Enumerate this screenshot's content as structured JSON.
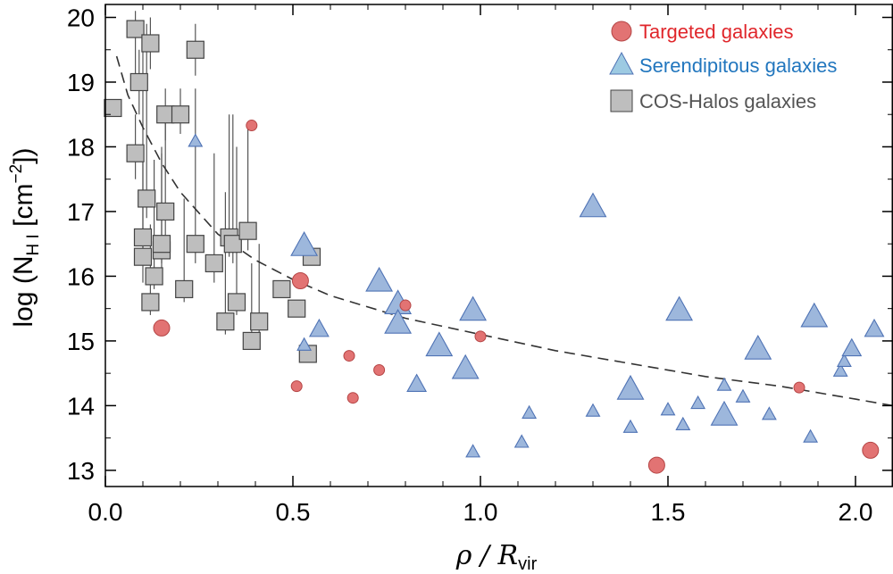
{
  "chart_data": {
    "type": "scatter",
    "title": "",
    "xlabel": {
      "main": "ρ / R",
      "sub": "vir"
    },
    "ylabel": {
      "main": "log (N",
      "sub": "H I",
      "mid": " [cm",
      "sup": "−2",
      "end": "])"
    },
    "xlim": [
      0.0,
      2.1
    ],
    "ylim": [
      12.75,
      20.2
    ],
    "xticks": [
      0.0,
      0.5,
      1.0,
      1.5,
      2.0
    ],
    "xtick_labels": [
      "0.0",
      "0.5",
      "1.0",
      "1.5",
      "2.0"
    ],
    "yticks": [
      13,
      14,
      15,
      16,
      17,
      18,
      19,
      20
    ],
    "ytick_labels": [
      "13",
      "14",
      "15",
      "16",
      "17",
      "18",
      "19",
      "20"
    ],
    "grid": false,
    "legend_position": "top-right",
    "legend": [
      {
        "label": "Targeted galaxies",
        "marker": "circle",
        "color": "#E0262B"
      },
      {
        "label": "Serendipitous galaxies",
        "marker": "triangle",
        "color": "#2176BE"
      },
      {
        "label": "COS-Halos galaxies",
        "marker": "square",
        "color": "#555555"
      }
    ],
    "colors": {
      "targeted_fill": "#E27373",
      "targeted_edge": "#B54545",
      "serendipitous_fill": "#9DB7DC",
      "serendipitous_edge": "#4F73B5",
      "coshalos_fill": "#BEBEBE",
      "coshalos_edge": "#444444",
      "fit_line": "#333333"
    },
    "fit_curve": {
      "style": "dashed",
      "points": [
        [
          0.03,
          19.4
        ],
        [
          0.06,
          18.8
        ],
        [
          0.1,
          18.3
        ],
        [
          0.15,
          17.75
        ],
        [
          0.2,
          17.3
        ],
        [
          0.3,
          16.65
        ],
        [
          0.4,
          16.25
        ],
        [
          0.5,
          15.95
        ],
        [
          0.6,
          15.7
        ],
        [
          0.8,
          15.35
        ],
        [
          1.0,
          15.1
        ],
        [
          1.2,
          14.85
        ],
        [
          1.4,
          14.65
        ],
        [
          1.6,
          14.45
        ],
        [
          1.8,
          14.3
        ],
        [
          2.0,
          14.1
        ],
        [
          2.1,
          14.0
        ]
      ]
    },
    "series": [
      {
        "name": "Targeted galaxies",
        "marker": "circle",
        "points": [
          {
            "x": 0.15,
            "y": 15.2,
            "size": "large"
          },
          {
            "x": 0.39,
            "y": 18.33,
            "size": "small"
          },
          {
            "x": 0.51,
            "y": 14.3,
            "size": "small"
          },
          {
            "x": 0.52,
            "y": 15.93,
            "size": "large"
          },
          {
            "x": 0.65,
            "y": 14.77,
            "size": "small"
          },
          {
            "x": 0.66,
            "y": 14.12,
            "size": "small"
          },
          {
            "x": 0.73,
            "y": 14.55,
            "size": "small"
          },
          {
            "x": 0.8,
            "y": 15.55,
            "size": "small"
          },
          {
            "x": 1.0,
            "y": 15.07,
            "size": "small"
          },
          {
            "x": 1.47,
            "y": 13.08,
            "size": "large"
          },
          {
            "x": 1.85,
            "y": 14.28,
            "size": "small"
          },
          {
            "x": 2.04,
            "y": 13.31,
            "size": "large"
          }
        ]
      },
      {
        "name": "Serendipitous galaxies",
        "marker": "triangle",
        "points": [
          {
            "x": 0.24,
            "y": 18.1,
            "size": "small"
          },
          {
            "x": 0.53,
            "y": 14.95,
            "size": "small"
          },
          {
            "x": 0.53,
            "y": 16.5,
            "size": "large"
          },
          {
            "x": 0.57,
            "y": 15.2,
            "size": "medium"
          },
          {
            "x": 0.73,
            "y": 15.95,
            "size": "large"
          },
          {
            "x": 0.78,
            "y": 15.6,
            "size": "large"
          },
          {
            "x": 0.78,
            "y": 15.3,
            "size": "large"
          },
          {
            "x": 0.83,
            "y": 14.35,
            "size": "medium"
          },
          {
            "x": 0.89,
            "y": 14.95,
            "size": "large"
          },
          {
            "x": 0.96,
            "y": 14.6,
            "size": "large"
          },
          {
            "x": 0.98,
            "y": 15.5,
            "size": "large"
          },
          {
            "x": 0.98,
            "y": 13.3,
            "size": "small"
          },
          {
            "x": 1.11,
            "y": 13.45,
            "size": "small"
          },
          {
            "x": 1.13,
            "y": 13.9,
            "size": "small"
          },
          {
            "x": 1.3,
            "y": 17.1,
            "size": "large"
          },
          {
            "x": 1.3,
            "y": 13.93,
            "size": "small"
          },
          {
            "x": 1.4,
            "y": 14.28,
            "size": "large"
          },
          {
            "x": 1.4,
            "y": 13.68,
            "size": "small"
          },
          {
            "x": 1.5,
            "y": 13.95,
            "size": "small"
          },
          {
            "x": 1.53,
            "y": 15.5,
            "size": "large"
          },
          {
            "x": 1.54,
            "y": 13.72,
            "size": "small"
          },
          {
            "x": 1.58,
            "y": 14.05,
            "size": "small"
          },
          {
            "x": 1.65,
            "y": 13.88,
            "size": "large"
          },
          {
            "x": 1.65,
            "y": 14.33,
            "size": "small"
          },
          {
            "x": 1.7,
            "y": 14.15,
            "size": "small"
          },
          {
            "x": 1.74,
            "y": 14.9,
            "size": "large"
          },
          {
            "x": 1.77,
            "y": 13.88,
            "size": "small"
          },
          {
            "x": 1.88,
            "y": 13.53,
            "size": "small"
          },
          {
            "x": 1.89,
            "y": 15.4,
            "size": "large"
          },
          {
            "x": 1.96,
            "y": 14.55,
            "size": "small"
          },
          {
            "x": 1.97,
            "y": 14.7,
            "size": "small"
          },
          {
            "x": 1.99,
            "y": 14.9,
            "size": "medium"
          },
          {
            "x": 2.05,
            "y": 15.2,
            "size": "medium"
          }
        ]
      },
      {
        "name": "COS-Halos galaxies",
        "marker": "square",
        "points": [
          {
            "x": 0.02,
            "y": 18.6
          },
          {
            "x": 0.08,
            "y": 19.82,
            "err": [
              19.0,
              20.1
            ]
          },
          {
            "x": 0.08,
            "y": 17.9,
            "err": [
              17.5,
              18.5
            ]
          },
          {
            "x": 0.09,
            "y": 19.0,
            "err": [
              18.5,
              19.5
            ]
          },
          {
            "x": 0.1,
            "y": 16.3,
            "err": [
              15.9,
              17.8
            ]
          },
          {
            "x": 0.1,
            "y": 16.6,
            "err": [
              16.3,
              19.5
            ]
          },
          {
            "x": 0.11,
            "y": 17.2,
            "err": [
              16.9,
              19.9
            ]
          },
          {
            "x": 0.12,
            "y": 19.6,
            "err": [
              19.2,
              20.0
            ]
          },
          {
            "x": 0.12,
            "y": 15.6,
            "err": [
              15.4,
              16.8
            ]
          },
          {
            "x": 0.13,
            "y": 16.0,
            "err": [
              15.8,
              17.8
            ]
          },
          {
            "x": 0.15,
            "y": 16.4,
            "err": [
              16.1,
              17.9
            ]
          },
          {
            "x": 0.15,
            "y": 16.5,
            "err": [
              16.2,
              18.0
            ]
          },
          {
            "x": 0.16,
            "y": 18.5,
            "err": [
              18.1,
              18.9
            ]
          },
          {
            "x": 0.16,
            "y": 17.0,
            "err": [
              16.6,
              18.4
            ]
          },
          {
            "x": 0.2,
            "y": 18.5,
            "err": [
              18.2,
              18.9
            ]
          },
          {
            "x": 0.21,
            "y": 15.8,
            "err": [
              15.6,
              17.2
            ]
          },
          {
            "x": 0.24,
            "y": 19.5,
            "err": [
              19.1,
              19.9
            ]
          },
          {
            "x": 0.24,
            "y": 16.5,
            "err": [
              16.2,
              18.9
            ]
          },
          {
            "x": 0.29,
            "y": 16.2,
            "err": [
              15.9,
              17.9
            ]
          },
          {
            "x": 0.32,
            "y": 15.3,
            "err": [
              15.1,
              17.3
            ]
          },
          {
            "x": 0.33,
            "y": 16.6,
            "err": [
              16.3,
              18.5
            ]
          },
          {
            "x": 0.34,
            "y": 16.5,
            "err": [
              16.2,
              18.5
            ]
          },
          {
            "x": 0.35,
            "y": 15.6,
            "err": [
              15.4,
              18.0
            ]
          },
          {
            "x": 0.38,
            "y": 16.7,
            "err": [
              16.4,
              18.3
            ]
          },
          {
            "x": 0.39,
            "y": 15.0,
            "err": [
              14.9,
              16.2
            ]
          },
          {
            "x": 0.41,
            "y": 15.3,
            "err": [
              15.1,
              16.5
            ]
          },
          {
            "x": 0.47,
            "y": 15.8
          },
          {
            "x": 0.51,
            "y": 15.5
          },
          {
            "x": 0.54,
            "y": 14.8
          },
          {
            "x": 0.55,
            "y": 16.3
          }
        ]
      }
    ]
  }
}
